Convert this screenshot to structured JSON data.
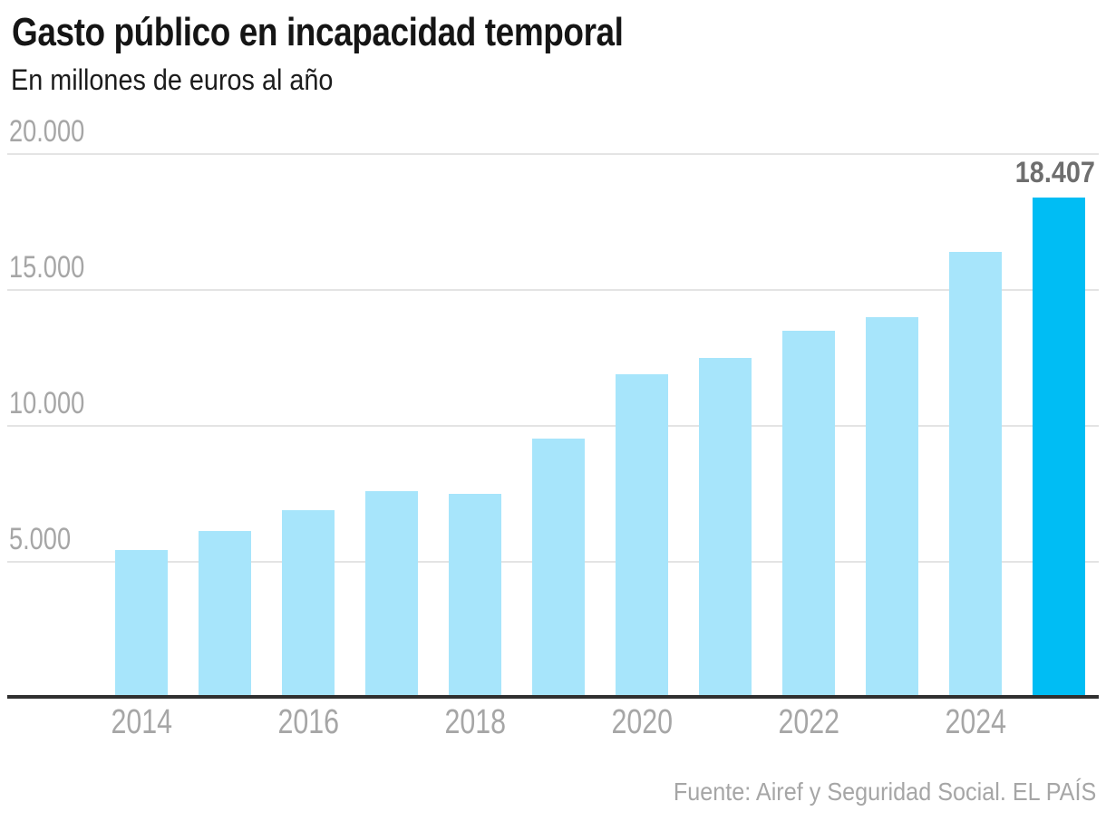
{
  "chart_data": {
    "type": "bar",
    "title": "Gasto público en incapacidad temporal",
    "subtitle": "En millones de euros al año",
    "unit": "millones de euros al año",
    "categories": [
      "2014",
      "2015",
      "2016",
      "2017",
      "2018",
      "2019",
      "2020",
      "2021",
      "2022",
      "2023",
      "2024",
      "2025"
    ],
    "values": [
      5450,
      6150,
      6900,
      7600,
      7500,
      9550,
      11900,
      12500,
      13500,
      14000,
      16400,
      18407
    ],
    "highlighted_index": 11,
    "annotation": {
      "text": "18.407",
      "value": 18407
    },
    "ylim": [
      0,
      20000
    ],
    "y_ticks": [
      {
        "label": "20.000",
        "value": 20000
      },
      {
        "label": "15.000",
        "value": 15000
      },
      {
        "label": "10.000",
        "value": 10000
      },
      {
        "label": "5.000",
        "value": 5000
      }
    ],
    "x_tick_labels": [
      {
        "label": "2014",
        "index": 0
      },
      {
        "label": "2016",
        "index": 2
      },
      {
        "label": "2018",
        "index": 4
      },
      {
        "label": "2020",
        "index": 6
      },
      {
        "label": "2022",
        "index": 8
      },
      {
        "label": "2024",
        "index": 10
      }
    ],
    "grid": "horizontal",
    "legend": "none",
    "source": "Fuente: Airef y Seguridad Social. EL PAÍS",
    "colors": {
      "bar": "#a7e5fb",
      "bar_highlight": "#00bdf4",
      "grid_line": "#e4e4e4",
      "axis_line": "#303030",
      "tick_label": "#a6a6a6",
      "annotation_label": "#6e6e6e",
      "title": "#151515",
      "subtitle": "#1c1c1c",
      "source": "#a6a6a6",
      "background": "#ffffff"
    }
  }
}
